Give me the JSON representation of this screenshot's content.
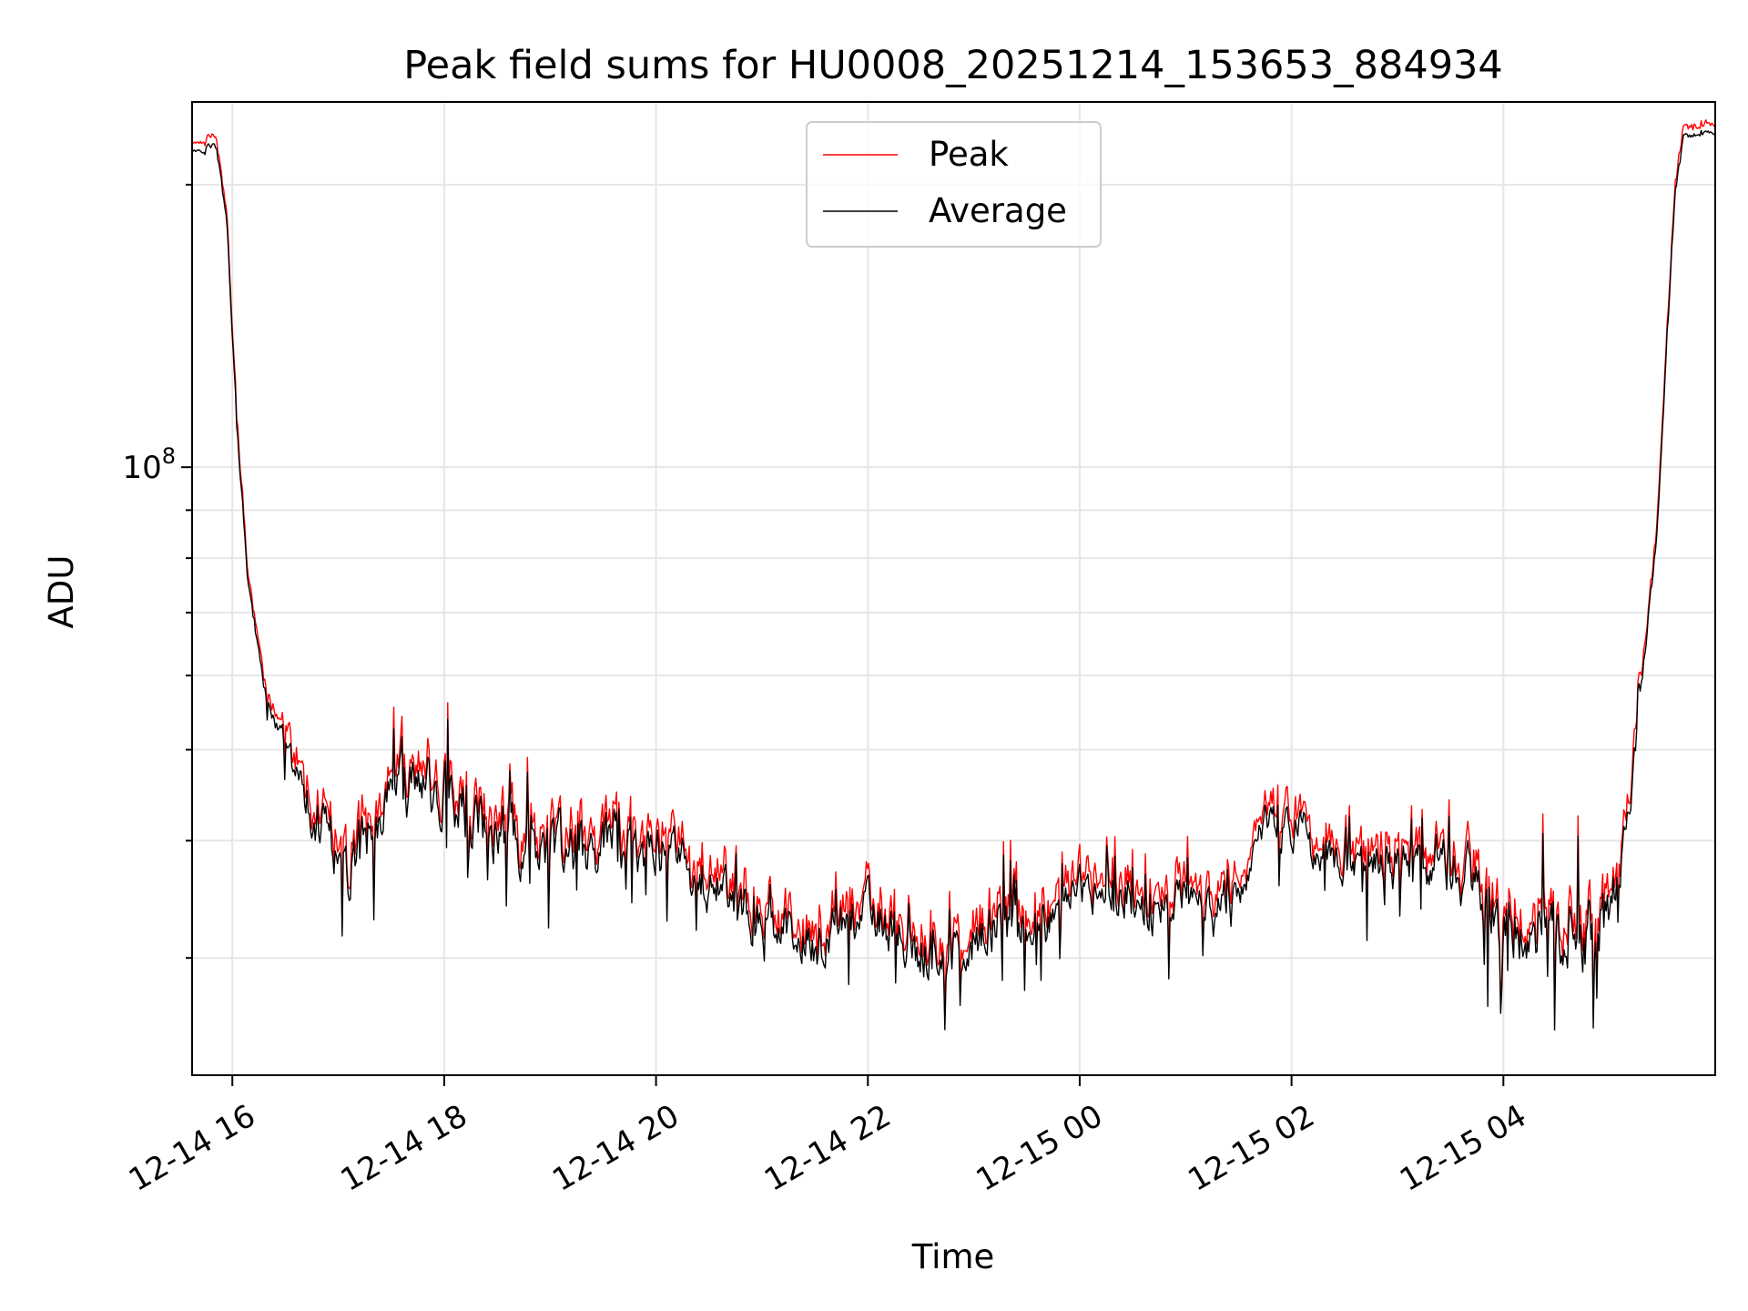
{
  "chart_data": {
    "type": "line",
    "title": "Peak field sums for HU0008_20251214_153653_884934",
    "xlabel": "Time",
    "ylabel": "ADU",
    "yscale": "log",
    "xlim": [
      15.62,
      30.0
    ],
    "ylim": [
      22500000,
      245000000
    ],
    "x_unit": "hours since 12-14 00:00",
    "x_ticks": [
      {
        "value": 16,
        "label": "12-14 16"
      },
      {
        "value": 18,
        "label": "12-14 18"
      },
      {
        "value": 20,
        "label": "12-14 20"
      },
      {
        "value": 22,
        "label": "12-14 22"
      },
      {
        "value": 24,
        "label": "12-15 00"
      },
      {
        "value": 26,
        "label": "12-15 02"
      },
      {
        "value": 28,
        "label": "12-15 04"
      }
    ],
    "y_major_tick": {
      "value": 100000000,
      "base": "10",
      "exponent": "8"
    },
    "y_minor_ticks": [
      30000000,
      40000000,
      50000000,
      60000000,
      70000000,
      80000000,
      90000000,
      200000000
    ],
    "grid": true,
    "legend": {
      "position": "upper center",
      "entries": [
        "Peak",
        "Average"
      ]
    },
    "series": [
      {
        "name": "Peak",
        "color": "#ff0000"
      },
      {
        "name": "Average",
        "color": "#000000"
      }
    ],
    "base_curve": {
      "x": [
        15.62,
        15.85,
        15.95,
        16.05,
        16.15,
        16.3,
        16.5,
        16.8,
        17.1,
        17.4,
        17.7,
        18.0,
        18.1,
        18.5,
        19.0,
        19.5,
        20.0,
        20.5,
        21.0,
        21.5,
        22.0,
        22.3,
        22.7,
        23.0,
        23.3,
        23.7,
        24.0,
        24.3,
        24.7,
        25.0,
        25.3,
        25.6,
        25.7,
        26.0,
        26.3,
        26.7,
        27.0,
        27.4,
        27.7,
        28.0,
        28.3,
        28.6,
        28.9,
        29.1,
        29.2,
        29.3,
        29.45,
        29.55,
        29.62,
        29.7,
        30.0
      ],
      "y": [
        217000000,
        220000000,
        180000000,
        108000000,
        75000000,
        58000000,
        50000000,
        42000000,
        37000000,
        43000000,
        45000000,
        46000000,
        44000000,
        40000000,
        39000000,
        40000000,
        39000000,
        36000000,
        33000000,
        31000000,
        34000000,
        32000000,
        30000000,
        31500000,
        33000000,
        32000000,
        35500000,
        35000000,
        33500000,
        35500000,
        34000000,
        36000000,
        41500000,
        41500000,
        39000000,
        38500000,
        37500000,
        39000000,
        36000000,
        33000000,
        32000000,
        31500000,
        32000000,
        37000000,
        45000000,
        58000000,
        85000000,
        140000000,
        195000000,
        225000000,
        228000000
      ]
    },
    "noise_amplitude": {
      "x": [
        15.62,
        16.4,
        17.0,
        19.0,
        21.3,
        22.5,
        24.0,
        25.6,
        26.5,
        27.5,
        28.4,
        28.9,
        29.4,
        30.0
      ],
      "a": [
        0.01,
        0.04,
        0.15,
        0.14,
        0.11,
        0.12,
        0.1,
        0.08,
        0.1,
        0.13,
        0.16,
        0.16,
        0.02,
        0.01
      ]
    },
    "num_points": 1300,
    "noise_seed": 8
  }
}
